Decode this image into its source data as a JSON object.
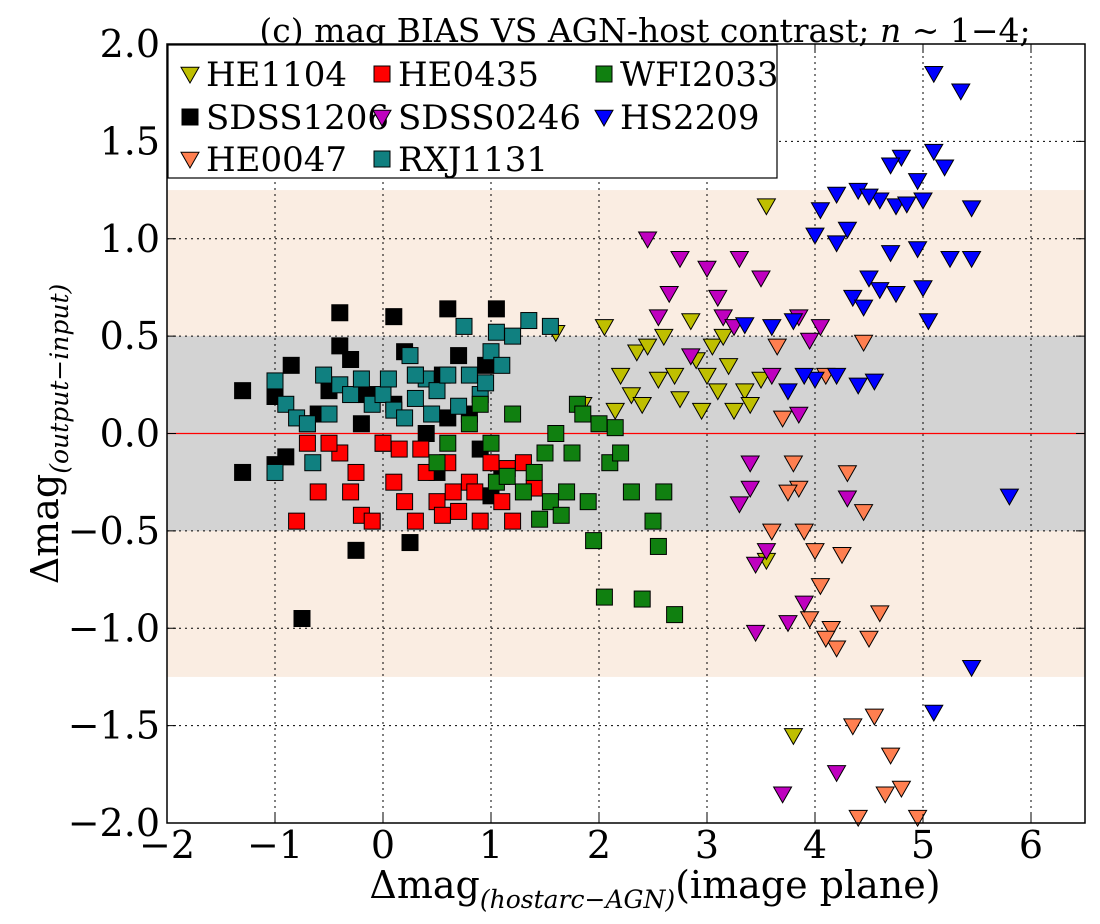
{
  "chart_data": {
    "type": "scatter",
    "title": {
      "prefix": "(c) mag BIAS VS AGN-host contrast; ",
      "var": "n",
      "suffix": " ~ 1−4;"
    },
    "xlabel": {
      "main": "Δmag",
      "sub": "(hostarc−AGN)",
      "suffix": "(image plane)"
    },
    "ylabel": {
      "main": "Δmag",
      "sub": "(output−input)"
    },
    "xlim": [
      -2,
      6.5
    ],
    "ylim": [
      -2,
      2
    ],
    "x_ticks": [
      -2,
      -1,
      0,
      1,
      2,
      3,
      4,
      5,
      6
    ],
    "x_tick_labels": [
      "−2",
      "−1",
      "0",
      "1",
      "2",
      "3",
      "4",
      "5",
      "6"
    ],
    "y_ticks": [
      -2,
      -1.5,
      -1,
      -0.5,
      0,
      0.5,
      1,
      1.5,
      2
    ],
    "y_tick_labels": [
      "−2.0",
      "−1.5",
      "−1.0",
      "−0.5",
      "0.0",
      "0.5",
      "1.0",
      "1.5",
      "2.0"
    ],
    "grid": true,
    "bands": [
      {
        "y0": -1.25,
        "y1": 1.25,
        "color": "#faede2"
      },
      {
        "y0": -0.5,
        "y1": 0.5,
        "color": "#d3d3d3"
      }
    ],
    "reference_line": {
      "y": 0,
      "color": "#ff0000"
    },
    "legend": {
      "position": "top-left",
      "columns": 3
    },
    "series": [
      {
        "name": "HE1104",
        "marker": "triangle-down",
        "color": "#bfbf00",
        "points": [
          [
            2.15,
            0.12
          ],
          [
            2.55,
            0.28
          ],
          [
            2.35,
            0.42
          ],
          [
            2.75,
            0.18
          ],
          [
            2.9,
            0.38
          ],
          [
            3.1,
            0.22
          ],
          [
            1.85,
            0.15
          ],
          [
            2.2,
            0.3
          ],
          [
            2.6,
            0.5
          ],
          [
            3.0,
            0.3
          ],
          [
            3.2,
            0.35
          ],
          [
            3.35,
            0.22
          ],
          [
            3.4,
            0.15
          ],
          [
            3.55,
            1.17
          ],
          [
            3.8,
            -1.55
          ],
          [
            3.55,
            -0.65
          ],
          [
            2.05,
            0.55
          ],
          [
            2.45,
            0.45
          ],
          [
            2.85,
            0.58
          ],
          [
            3.25,
            0.12
          ],
          [
            1.6,
            0.52
          ],
          [
            2.3,
            0.2
          ],
          [
            2.7,
            0.3
          ],
          [
            3.05,
            0.45
          ],
          [
            3.5,
            0.28
          ],
          [
            2.4,
            0.15
          ],
          [
            2.95,
            0.12
          ],
          [
            3.15,
            0.5
          ]
        ]
      },
      {
        "name": "SDSS1206",
        "marker": "square",
        "color": "#000000",
        "points": [
          [
            -1.3,
            0.22
          ],
          [
            -1.3,
            -0.2
          ],
          [
            -1.0,
            0.19
          ],
          [
            -1.0,
            -0.16
          ],
          [
            -0.85,
            0.35
          ],
          [
            -0.9,
            -0.12
          ],
          [
            -0.75,
            -0.95
          ],
          [
            -0.4,
            0.62
          ],
          [
            -0.3,
            0.38
          ],
          [
            -0.25,
            -0.6
          ],
          [
            0.1,
            0.6
          ],
          [
            0.2,
            0.42
          ],
          [
            0.25,
            -0.56
          ],
          [
            0.6,
            0.64
          ],
          [
            0.7,
            0.4
          ],
          [
            1.05,
            0.64
          ],
          [
            0.95,
            0.35
          ],
          [
            1.0,
            -0.32
          ],
          [
            0.8,
            0.1
          ],
          [
            -0.5,
            0.22
          ],
          [
            -0.2,
            0.05
          ],
          [
            0.0,
            -0.05
          ],
          [
            0.4,
            0.0
          ],
          [
            0.5,
            -0.2
          ],
          [
            0.6,
            0.08
          ],
          [
            -0.6,
            0.1
          ],
          [
            -0.4,
            0.45
          ],
          [
            0.3,
            0.3
          ],
          [
            0.9,
            -0.08
          ],
          [
            -0.15,
            0.2
          ],
          [
            0.1,
            0.15
          ],
          [
            1.1,
            -0.22
          ],
          [
            -0.7,
            0.05
          ],
          [
            0.55,
            0.3
          ]
        ]
      },
      {
        "name": "HE0047",
        "marker": "triangle-down",
        "color": "#ff7f50",
        "points": [
          [
            3.65,
            0.45
          ],
          [
            4.1,
            0.3
          ],
          [
            4.45,
            0.47
          ],
          [
            3.85,
            -0.28
          ],
          [
            4.0,
            -0.6
          ],
          [
            4.3,
            -0.2
          ],
          [
            3.95,
            -0.95
          ],
          [
            4.15,
            -1.0
          ],
          [
            4.35,
            -1.5
          ],
          [
            4.5,
            -1.05
          ],
          [
            4.2,
            -1.1
          ],
          [
            4.65,
            -1.85
          ],
          [
            4.8,
            -1.82
          ],
          [
            4.95,
            -1.97
          ],
          [
            4.4,
            -1.97
          ],
          [
            4.55,
            -1.45
          ],
          [
            4.7,
            -1.65
          ],
          [
            3.75,
            -0.3
          ],
          [
            3.6,
            -0.5
          ],
          [
            4.05,
            -0.78
          ],
          [
            4.25,
            -0.62
          ],
          [
            4.6,
            -0.92
          ],
          [
            3.9,
            -0.5
          ],
          [
            4.1,
            -1.05
          ],
          [
            4.45,
            -0.4
          ],
          [
            3.8,
            -0.15
          ],
          [
            3.7,
            0.08
          ]
        ]
      },
      {
        "name": "HE0435",
        "marker": "square",
        "color": "#ff0000",
        "points": [
          [
            -0.8,
            -0.45
          ],
          [
            -0.6,
            -0.3
          ],
          [
            -0.4,
            -0.1
          ],
          [
            -0.3,
            -0.3
          ],
          [
            -0.2,
            -0.42
          ],
          [
            -0.1,
            -0.45
          ],
          [
            0.0,
            -0.05
          ],
          [
            0.1,
            -0.25
          ],
          [
            0.2,
            -0.35
          ],
          [
            0.3,
            -0.45
          ],
          [
            0.4,
            -0.2
          ],
          [
            0.5,
            -0.35
          ],
          [
            0.6,
            -0.15
          ],
          [
            0.7,
            -0.4
          ],
          [
            0.8,
            -0.25
          ],
          [
            0.9,
            -0.45
          ],
          [
            1.0,
            -0.15
          ],
          [
            1.1,
            -0.35
          ],
          [
            1.2,
            -0.45
          ],
          [
            1.3,
            -0.15
          ],
          [
            -0.5,
            -0.05
          ],
          [
            0.15,
            -0.08
          ],
          [
            0.55,
            -0.42
          ],
          [
            0.85,
            -0.3
          ],
          [
            1.4,
            -0.28
          ],
          [
            -0.7,
            -0.05
          ],
          [
            -0.25,
            -0.2
          ],
          [
            0.35,
            -0.08
          ],
          [
            0.65,
            -0.3
          ],
          [
            1.15,
            -0.18
          ]
        ]
      },
      {
        "name": "SDSS0246",
        "marker": "triangle-down",
        "color": "#bf00bf",
        "points": [
          [
            2.45,
            1.0
          ],
          [
            2.75,
            0.9
          ],
          [
            3.0,
            0.85
          ],
          [
            3.3,
            0.9
          ],
          [
            3.15,
            0.6
          ],
          [
            3.5,
            0.8
          ],
          [
            3.85,
            0.6
          ],
          [
            4.05,
            0.55
          ],
          [
            2.55,
            0.6
          ],
          [
            2.85,
            0.4
          ],
          [
            3.4,
            -0.15
          ],
          [
            3.3,
            -0.36
          ],
          [
            3.4,
            -0.28
          ],
          [
            3.45,
            -0.67
          ],
          [
            3.75,
            -0.97
          ],
          [
            3.85,
            0.1
          ],
          [
            3.9,
            -0.87
          ],
          [
            4.3,
            -0.33
          ],
          [
            3.45,
            -1.02
          ],
          [
            3.7,
            -1.85
          ],
          [
            4.2,
            -1.74
          ],
          [
            3.55,
            -0.6
          ],
          [
            3.6,
            0.3
          ],
          [
            3.95,
            0.48
          ],
          [
            2.65,
            0.72
          ],
          [
            3.25,
            0.55
          ],
          [
            3.1,
            0.7
          ]
        ]
      },
      {
        "name": "RXJ1131",
        "marker": "square",
        "color": "#108080",
        "points": [
          [
            -1.0,
            0.27
          ],
          [
            -0.9,
            0.15
          ],
          [
            -0.8,
            0.08
          ],
          [
            -0.7,
            0.05
          ],
          [
            -0.65,
            -0.15
          ],
          [
            -0.5,
            0.1
          ],
          [
            -0.4,
            0.25
          ],
          [
            -0.3,
            0.2
          ],
          [
            -0.2,
            0.28
          ],
          [
            -0.1,
            0.15
          ],
          [
            0.0,
            0.2
          ],
          [
            0.1,
            0.12
          ],
          [
            0.2,
            0.08
          ],
          [
            0.25,
            0.4
          ],
          [
            0.3,
            0.18
          ],
          [
            0.4,
            0.28
          ],
          [
            0.5,
            0.22
          ],
          [
            0.6,
            0.3
          ],
          [
            0.7,
            0.14
          ],
          [
            0.8,
            0.3
          ],
          [
            0.9,
            0.2
          ],
          [
            1.0,
            0.42
          ],
          [
            1.1,
            0.35
          ],
          [
            1.2,
            0.5
          ],
          [
            1.35,
            0.58
          ],
          [
            1.55,
            0.55
          ],
          [
            0.75,
            0.55
          ],
          [
            1.05,
            0.52
          ],
          [
            -1.0,
            -0.2
          ],
          [
            0.05,
            0.28
          ],
          [
            0.45,
            0.1
          ],
          [
            0.95,
            0.26
          ],
          [
            -0.55,
            0.3
          ],
          [
            0.3,
            0.3
          ]
        ]
      },
      {
        "name": "WFI2033",
        "marker": "square",
        "color": "#108010",
        "points": [
          [
            0.5,
            -0.15
          ],
          [
            0.6,
            -0.05
          ],
          [
            0.8,
            0.05
          ],
          [
            1.0,
            -0.05
          ],
          [
            1.05,
            -0.25
          ],
          [
            1.2,
            0.1
          ],
          [
            1.3,
            -0.3
          ],
          [
            1.4,
            -0.2
          ],
          [
            1.5,
            -0.1
          ],
          [
            1.55,
            -0.35
          ],
          [
            1.6,
            0.0
          ],
          [
            1.7,
            -0.3
          ],
          [
            1.8,
            0.15
          ],
          [
            1.9,
            -0.35
          ],
          [
            2.0,
            0.05
          ],
          [
            2.1,
            -0.15
          ],
          [
            2.2,
            -0.1
          ],
          [
            2.3,
            -0.3
          ],
          [
            2.5,
            -0.45
          ],
          [
            2.6,
            -0.3
          ],
          [
            1.95,
            -0.55
          ],
          [
            2.4,
            -0.85
          ],
          [
            2.55,
            -0.58
          ],
          [
            2.7,
            -0.93
          ],
          [
            2.05,
            -0.84
          ],
          [
            1.45,
            -0.44
          ],
          [
            1.65,
            -0.42
          ],
          [
            1.85,
            0.1
          ],
          [
            0.9,
            0.15
          ],
          [
            1.15,
            -0.22
          ],
          [
            1.75,
            -0.1
          ],
          [
            2.15,
            0.03
          ]
        ]
      },
      {
        "name": "HS2209",
        "marker": "triangle-down",
        "color": "#0000ff",
        "points": [
          [
            4.2,
            1.23
          ],
          [
            4.05,
            1.15
          ],
          [
            4.4,
            1.25
          ],
          [
            4.6,
            1.2
          ],
          [
            4.75,
            1.17
          ],
          [
            4.85,
            1.18
          ],
          [
            5.0,
            1.2
          ],
          [
            4.8,
            1.42
          ],
          [
            4.7,
            1.38
          ],
          [
            4.95,
            1.3
          ],
          [
            5.1,
            1.45
          ],
          [
            5.2,
            1.37
          ],
          [
            5.1,
            1.85
          ],
          [
            5.35,
            1.76
          ],
          [
            5.45,
            1.16
          ],
          [
            5.45,
            0.9
          ],
          [
            4.7,
            0.93
          ],
          [
            4.6,
            0.74
          ],
          [
            4.5,
            0.8
          ],
          [
            4.35,
            0.7
          ],
          [
            4.45,
            0.65
          ],
          [
            4.75,
            0.72
          ],
          [
            4.2,
            0.98
          ],
          [
            4.3,
            1.05
          ],
          [
            4.5,
            1.22
          ],
          [
            4.0,
            1.02
          ],
          [
            4.95,
            0.95
          ],
          [
            5.0,
            0.75
          ],
          [
            5.05,
            0.58
          ],
          [
            5.25,
            0.9
          ],
          [
            4.0,
            0.28
          ],
          [
            4.2,
            0.3
          ],
          [
            4.4,
            0.25
          ],
          [
            4.55,
            0.27
          ],
          [
            3.9,
            0.3
          ],
          [
            3.75,
            0.22
          ],
          [
            3.6,
            0.55
          ],
          [
            3.8,
            0.58
          ],
          [
            3.35,
            0.56
          ],
          [
            5.1,
            -1.43
          ],
          [
            5.45,
            -1.2
          ],
          [
            5.8,
            -0.32
          ]
        ]
      }
    ]
  }
}
